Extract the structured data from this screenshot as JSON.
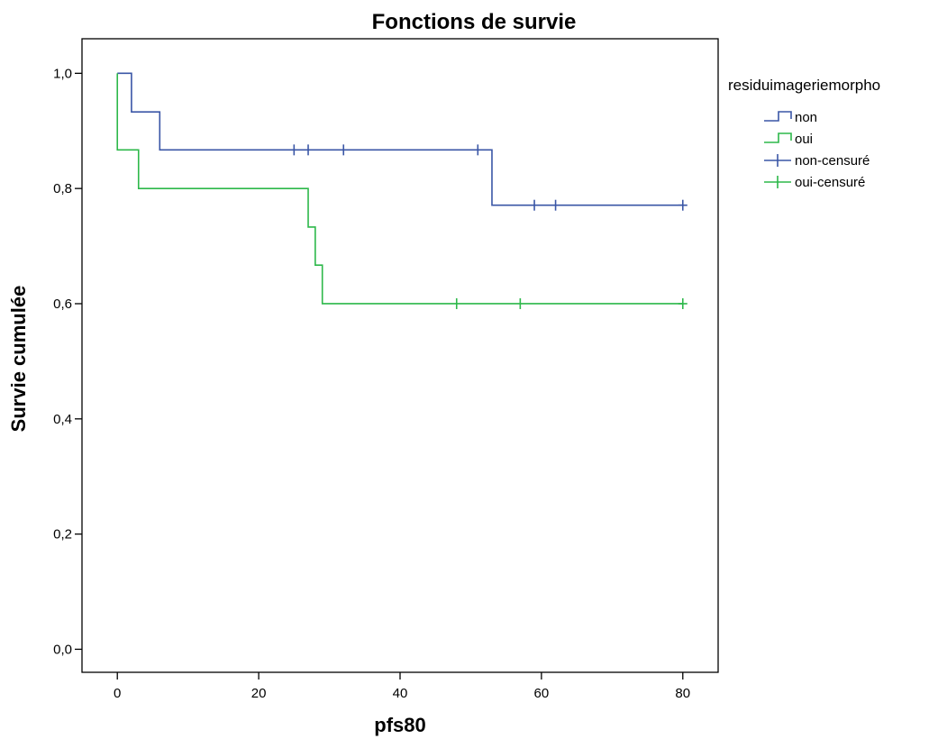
{
  "chart_data": {
    "type": "line",
    "subtype": "kaplan-meier-step",
    "title": "Fonctions de survie",
    "xlabel": "pfs80",
    "ylabel": "Survie cumulée",
    "xlim": [
      -5,
      85
    ],
    "ylim": [
      -0.04,
      1.06
    ],
    "xticks": [
      {
        "value": 0,
        "label": "0"
      },
      {
        "value": 20,
        "label": "20"
      },
      {
        "value": 40,
        "label": "40"
      },
      {
        "value": 60,
        "label": "60"
      },
      {
        "value": 80,
        "label": "80"
      }
    ],
    "yticks": [
      {
        "value": 0.0,
        "label": "0,0"
      },
      {
        "value": 0.2,
        "label": "0,2"
      },
      {
        "value": 0.4,
        "label": "0,4"
      },
      {
        "value": 0.6,
        "label": "0,6"
      },
      {
        "value": 0.8,
        "label": "0,8"
      },
      {
        "value": 1.0,
        "label": "1,0"
      }
    ],
    "grid": false,
    "legend": {
      "title": "residuimageriemorpho",
      "placement": "top-right, outside plot",
      "entries": [
        {
          "label": "non",
          "symbol": "step",
          "color": "#3a56a6"
        },
        {
          "label": "oui",
          "symbol": "step",
          "color": "#2db84a"
        },
        {
          "label": "non-censuré",
          "symbol": "censor",
          "color": "#3a56a6"
        },
        {
          "label": "oui-censuré",
          "symbol": "censor",
          "color": "#2db84a"
        }
      ]
    },
    "series": [
      {
        "name": "non",
        "color": "#3a56a6",
        "steps": [
          [
            0,
            1.0
          ],
          [
            2,
            0.933
          ],
          [
            6,
            0.867
          ],
          [
            53,
            0.771
          ],
          [
            80,
            0.771
          ]
        ],
        "censored": [
          [
            25,
            0.867
          ],
          [
            27,
            0.867
          ],
          [
            32,
            0.867
          ],
          [
            51,
            0.867
          ],
          [
            59,
            0.771
          ],
          [
            62,
            0.771
          ],
          [
            80,
            0.771
          ]
        ]
      },
      {
        "name": "oui",
        "color": "#2db84a",
        "steps": [
          [
            0,
            1.0
          ],
          [
            0,
            0.867
          ],
          [
            3,
            0.8
          ],
          [
            27,
            0.733
          ],
          [
            28,
            0.667
          ],
          [
            29,
            0.6
          ],
          [
            80,
            0.6
          ]
        ],
        "censored": [
          [
            48,
            0.6
          ],
          [
            57,
            0.6
          ],
          [
            80,
            0.6
          ]
        ]
      }
    ]
  }
}
